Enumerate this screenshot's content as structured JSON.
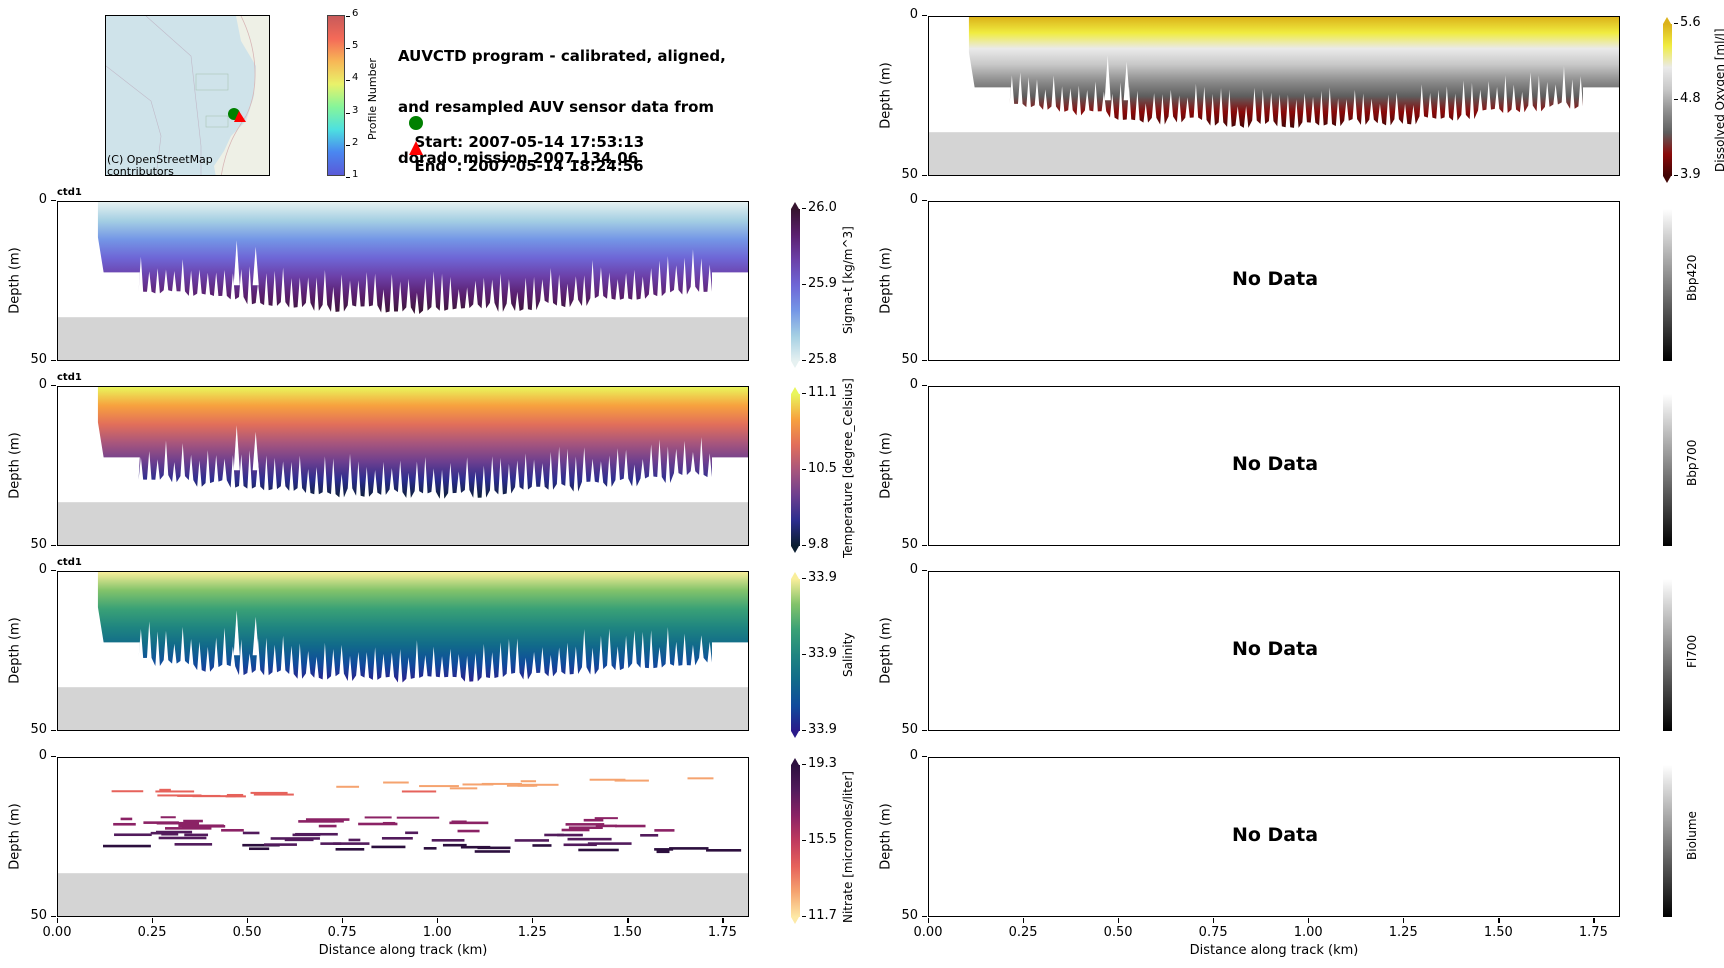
{
  "header": {
    "title_lines": [
      "AUVCTD program - calibrated, aligned,",
      "and resampled AUV sensor data from",
      "dorado mission 2007.134.06"
    ],
    "start_label": "Start: 2007-05-14 17:53:13",
    "end_label": "End  : 2007-05-14 18:24:56",
    "start_marker": "circle",
    "end_marker": "triangle",
    "start_color": "#008000",
    "end_color": "#ff0000"
  },
  "map": {
    "attribution_lines": [
      "(C) OpenStreetMap",
      "contributors"
    ],
    "water_color": "#cfe3ea",
    "colorbar": {
      "label": "Profile Number",
      "ticks": [
        "1",
        "2",
        "3",
        "4",
        "5",
        "6"
      ],
      "range": [
        1,
        6
      ]
    }
  },
  "common": {
    "ylabel": "Depth (m)",
    "xlabel": "Distance along track (km)",
    "yticks": [
      "0",
      "50"
    ],
    "xticks": [
      "0.00",
      "0.25",
      "0.50",
      "0.75",
      "1.00",
      "1.25",
      "1.50",
      "1.75"
    ],
    "no_data_text": "No Data",
    "seafloor_color": "#d4d4d4",
    "seafloor_depth_m": 36
  },
  "chart_data": [
    {
      "type": "heatmap",
      "id": "oxygen",
      "title": "",
      "variable": "Dissolved Oxygen [ml/l]",
      "xlabel": "",
      "ylabel": "Depth (m)",
      "xlim": [
        0,
        1.82
      ],
      "ylim": [
        50,
        0
      ],
      "colorbar": {
        "ticks": [
          "5.6",
          "4.8",
          "3.9"
        ],
        "range": [
          3.9,
          5.6
        ],
        "extend": "both",
        "colormap": "oxygen"
      },
      "has_data": true
    },
    {
      "type": "heatmap",
      "id": "sigmat",
      "title": "ctd1",
      "variable": "Sigma-t [kg/m^3]",
      "xlabel": "",
      "ylabel": "Depth (m)",
      "xlim": [
        0,
        1.82
      ],
      "ylim": [
        50,
        0
      ],
      "colorbar": {
        "ticks": [
          "26.0",
          "25.9",
          "25.8"
        ],
        "range": [
          25.8,
          26.0
        ],
        "extend": "both",
        "colormap": "dense"
      },
      "has_data": true
    },
    {
      "type": "heatmap",
      "id": "temperature",
      "title": "ctd1",
      "variable": "Temperature [degree_Celsius]",
      "xlabel": "",
      "ylabel": "Depth (m)",
      "xlim": [
        0,
        1.82
      ],
      "ylim": [
        50,
        0
      ],
      "colorbar": {
        "ticks": [
          "11.1",
          "10.5",
          "9.8"
        ],
        "range": [
          9.8,
          11.1
        ],
        "extend": "both",
        "colormap": "thermal"
      },
      "has_data": true
    },
    {
      "type": "heatmap",
      "id": "salinity",
      "title": "ctd1",
      "variable": "Salinity",
      "xlabel": "",
      "ylabel": "Depth (m)",
      "xlim": [
        0,
        1.82
      ],
      "ylim": [
        50,
        0
      ],
      "colorbar": {
        "ticks": [
          "33.9",
          "33.9",
          "33.9"
        ],
        "range": [
          33.9,
          33.9
        ],
        "extend": "both",
        "colormap": "haline"
      },
      "has_data": true
    },
    {
      "type": "heatmap",
      "id": "nitrate",
      "title": "",
      "variable": "Nitrate [micromoles/liter]",
      "xlabel": "Distance along track (km)",
      "ylabel": "Depth (m)",
      "xlim": [
        0,
        1.82
      ],
      "ylim": [
        50,
        0
      ],
      "colorbar": {
        "ticks": [
          "19.3",
          "15.5",
          "11.7"
        ],
        "range": [
          11.7,
          19.3
        ],
        "extend": "both",
        "colormap": "matter"
      },
      "has_data": true
    },
    {
      "type": "heatmap",
      "id": "bbp420",
      "title": "",
      "variable": "Bbp420",
      "ylabel": "Depth (m)",
      "xlim": [
        0,
        1.82
      ],
      "ylim": [
        50,
        0
      ],
      "colorbar": {
        "ticks": [],
        "colormap": "gray"
      },
      "has_data": false
    },
    {
      "type": "heatmap",
      "id": "bbp700",
      "title": "",
      "variable": "Bbp700",
      "ylabel": "Depth (m)",
      "xlim": [
        0,
        1.82
      ],
      "ylim": [
        50,
        0
      ],
      "colorbar": {
        "ticks": [],
        "colormap": "gray"
      },
      "has_data": false
    },
    {
      "type": "heatmap",
      "id": "fl700",
      "title": "",
      "variable": "Fl700",
      "ylabel": "Depth (m)",
      "xlim": [
        0,
        1.82
      ],
      "ylim": [
        50,
        0
      ],
      "colorbar": {
        "ticks": [],
        "colormap": "gray"
      },
      "has_data": false
    },
    {
      "type": "heatmap",
      "id": "biolume",
      "title": "",
      "variable": "Biolume",
      "xlabel": "Distance along track (km)",
      "ylabel": "Depth (m)",
      "xlim": [
        0,
        1.82
      ],
      "ylim": [
        50,
        0
      ],
      "colorbar": {
        "ticks": [],
        "colormap": "gray"
      },
      "has_data": false
    }
  ]
}
